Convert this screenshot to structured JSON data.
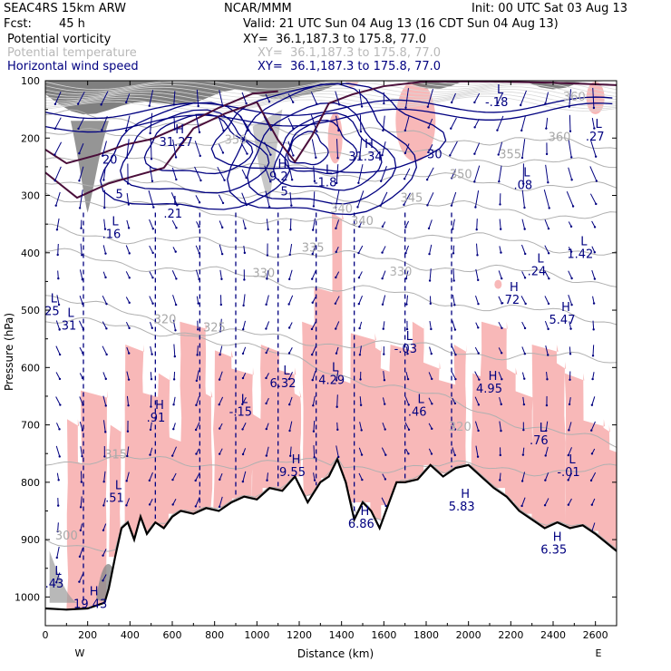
{
  "header": {
    "model": "SEAC4RS 15km ARW",
    "org": "NCAR/MMM",
    "init": "Init: 00 UTC Sat 03 Aug 13",
    "fcst_label": "Fcst:",
    "fcst_value": "45 h",
    "valid": "Valid: 21 UTC Sun 04 Aug 13 (16 CDT Sun 04 Aug 13)",
    "fields": [
      {
        "name": "Potential vorticity",
        "xy": "XY=  36.1,187.3 to 175.8, 77.0",
        "color": "#000000"
      },
      {
        "name": "Potential temperature",
        "xy": "XY=  36.1,187.3 to 175.8, 77.0",
        "color": "#b8b8b8"
      },
      {
        "name": "Horizontal wind speed",
        "xy": "XY=  36.1,187.3 to 175.8, 77.0",
        "color": "#000080"
      }
    ]
  },
  "chart_data": {
    "type": "cross-section",
    "xlabel": "Distance (km)",
    "ylabel": "Pressure (hPa)",
    "xlim": [
      0,
      2700
    ],
    "ylim": [
      1050,
      100
    ],
    "x_ticks": [
      "0",
      "200",
      "400",
      "600",
      "800",
      "1000",
      "1200",
      "1400",
      "1600",
      "1800",
      "2000",
      "2200",
      "2400",
      "2600"
    ],
    "y_ticks": [
      "100",
      "200",
      "300",
      "400",
      "500",
      "600",
      "700",
      "800",
      "900",
      "1000"
    ],
    "x_endpoints": {
      "left": "W",
      "right": "E"
    },
    "colors": {
      "pv": "#4a0e3a",
      "theta": "#b0b0b0",
      "wind": "#000080",
      "rh": "#f8b8b8",
      "terrain": "#000000"
    },
    "terrain": {
      "x": [
        0,
        100,
        200,
        280,
        300,
        330,
        360,
        390,
        420,
        450,
        480,
        520,
        560,
        600,
        640,
        700,
        760,
        820,
        880,
        940,
        1000,
        1060,
        1120,
        1180,
        1240,
        1300,
        1340,
        1380,
        1420,
        1460,
        1500,
        1540,
        1580,
        1620,
        1660,
        1700,
        1760,
        1820,
        1880,
        1940,
        2000,
        2060,
        2120,
        2180,
        2240,
        2300,
        2360,
        2420,
        2480,
        2540,
        2600,
        2650,
        2700
      ],
      "p": [
        1020,
        1022,
        1020,
        1010,
        985,
        930,
        880,
        870,
        900,
        860,
        890,
        870,
        880,
        860,
        850,
        855,
        845,
        850,
        835,
        825,
        830,
        810,
        815,
        790,
        835,
        800,
        790,
        760,
        800,
        865,
        835,
        850,
        880,
        840,
        800,
        800,
        795,
        770,
        790,
        775,
        770,
        790,
        810,
        825,
        850,
        865,
        880,
        870,
        880,
        875,
        890,
        905,
        920
      ]
    },
    "theta_contours": [
      {
        "label": "300",
        "p0": 900,
        "p1": 1005
      },
      {
        "label": "315",
        "p0": 760,
        "p1": 780
      },
      {
        "label": "320",
        "p0": 470,
        "p1": 740
      },
      {
        "label": "325",
        "p0": 520,
        "p1": 590
      },
      {
        "label": "330",
        "p0": 400,
        "p1": 520
      },
      {
        "label": "335",
        "p0": 360,
        "p1": 450
      },
      {
        "label": "340",
        "p0": 300,
        "p1": 400
      },
      {
        "label": "345",
        "p0": 270,
        "p1": 340
      },
      {
        "label": "350",
        "p0": 230,
        "p1": 290
      },
      {
        "label": "355",
        "p0": 190,
        "p1": 250
      },
      {
        "label": "360",
        "p0": 160,
        "p1": 215
      }
    ],
    "extrema": [
      {
        "kind": "L",
        "value": "1.42",
        "x": 2545,
        "p": 390
      },
      {
        "kind": "L",
        "value": ".24",
        "x": 2340,
        "p": 420
      },
      {
        "kind": "H",
        "value": ".72",
        "x": 2215,
        "p": 470
      },
      {
        "kind": "H",
        "value": "5.47",
        "x": 2460,
        "p": 505
      },
      {
        "kind": "L",
        "value": "-.03",
        "x": 1720,
        "p": 555
      },
      {
        "kind": "L",
        "value": "4.29",
        "x": 1370,
        "p": 610
      },
      {
        "kind": "L",
        "value": "6.32",
        "x": 1140,
        "p": 615
      },
      {
        "kind": "H",
        "value": "4.95",
        "x": 2115,
        "p": 625
      },
      {
        "kind": "L",
        "value": ".46",
        "x": 1775,
        "p": 665
      },
      {
        "kind": "L",
        "value": "-.15",
        "x": 940,
        "p": 665
      },
      {
        "kind": "H",
        "value": ".91",
        "x": 540,
        "p": 675
      },
      {
        "kind": "L",
        "value": ".76",
        "x": 2350,
        "p": 715
      },
      {
        "kind": "H",
        "value": "9.55",
        "x": 1185,
        "p": 770
      },
      {
        "kind": "L",
        "value": "-.01",
        "x": 2490,
        "p": 770
      },
      {
        "kind": "L",
        "value": ".51",
        "x": 345,
        "p": 815
      },
      {
        "kind": "H",
        "value": "5.83",
        "x": 1985,
        "p": 830
      },
      {
        "kind": "H",
        "value": "6.86",
        "x": 1510,
        "p": 860
      },
      {
        "kind": "H",
        "value": "6.35",
        "x": 2420,
        "p": 905
      },
      {
        "kind": "L",
        "value": ".43",
        "x": 60,
        "p": 965
      },
      {
        "kind": "H",
        "value": "19.43",
        "x": 230,
        "p": 1000
      },
      {
        "kind": "L",
        "value": ".25",
        "x": 40,
        "p": 490
      },
      {
        "kind": "L",
        "value": ".31",
        "x": 120,
        "p": 515
      },
      {
        "kind": "L",
        "value": ".21",
        "x": 620,
        "p": 320
      },
      {
        "kind": "L",
        "value": ".16",
        "x": 330,
        "p": 355
      },
      {
        "kind": "L",
        "value": "-1.8",
        "x": 1340,
        "p": 265
      },
      {
        "kind": "H",
        "value": "31.34",
        "x": 1530,
        "p": 220
      },
      {
        "kind": "H",
        "value": "31.27",
        "x": 635,
        "p": 195
      },
      {
        "kind": "H",
        "value": "9.2",
        "x": 1120,
        "p": 255
      },
      {
        "kind": "L",
        "value": "-.18",
        "x": 2150,
        "p": 125
      },
      {
        "kind": "L",
        "value": ".08",
        "x": 2275,
        "p": 270
      },
      {
        "kind": "L",
        "value": ".27",
        "x": 2615,
        "p": 185
      }
    ],
    "wind_labels": [
      {
        "label": "20",
        "x": 305,
        "p": 245
      },
      {
        "label": "5",
        "x": 350,
        "p": 305
      },
      {
        "label": "5",
        "x": 1130,
        "p": 300
      },
      {
        "label": "30",
        "x": 1840,
        "p": 235
      }
    ],
    "top_labels": [
      {
        "label": "360",
        "x": 2500,
        "p": 135
      },
      {
        "label": "350",
        "x": 900,
        "p": 210
      },
      {
        "label": "340",
        "x": 1400,
        "p": 330
      },
      {
        "label": "330",
        "x": 1680,
        "p": 440
      },
      {
        "label": "320",
        "x": 1960,
        "p": 710
      }
    ]
  }
}
